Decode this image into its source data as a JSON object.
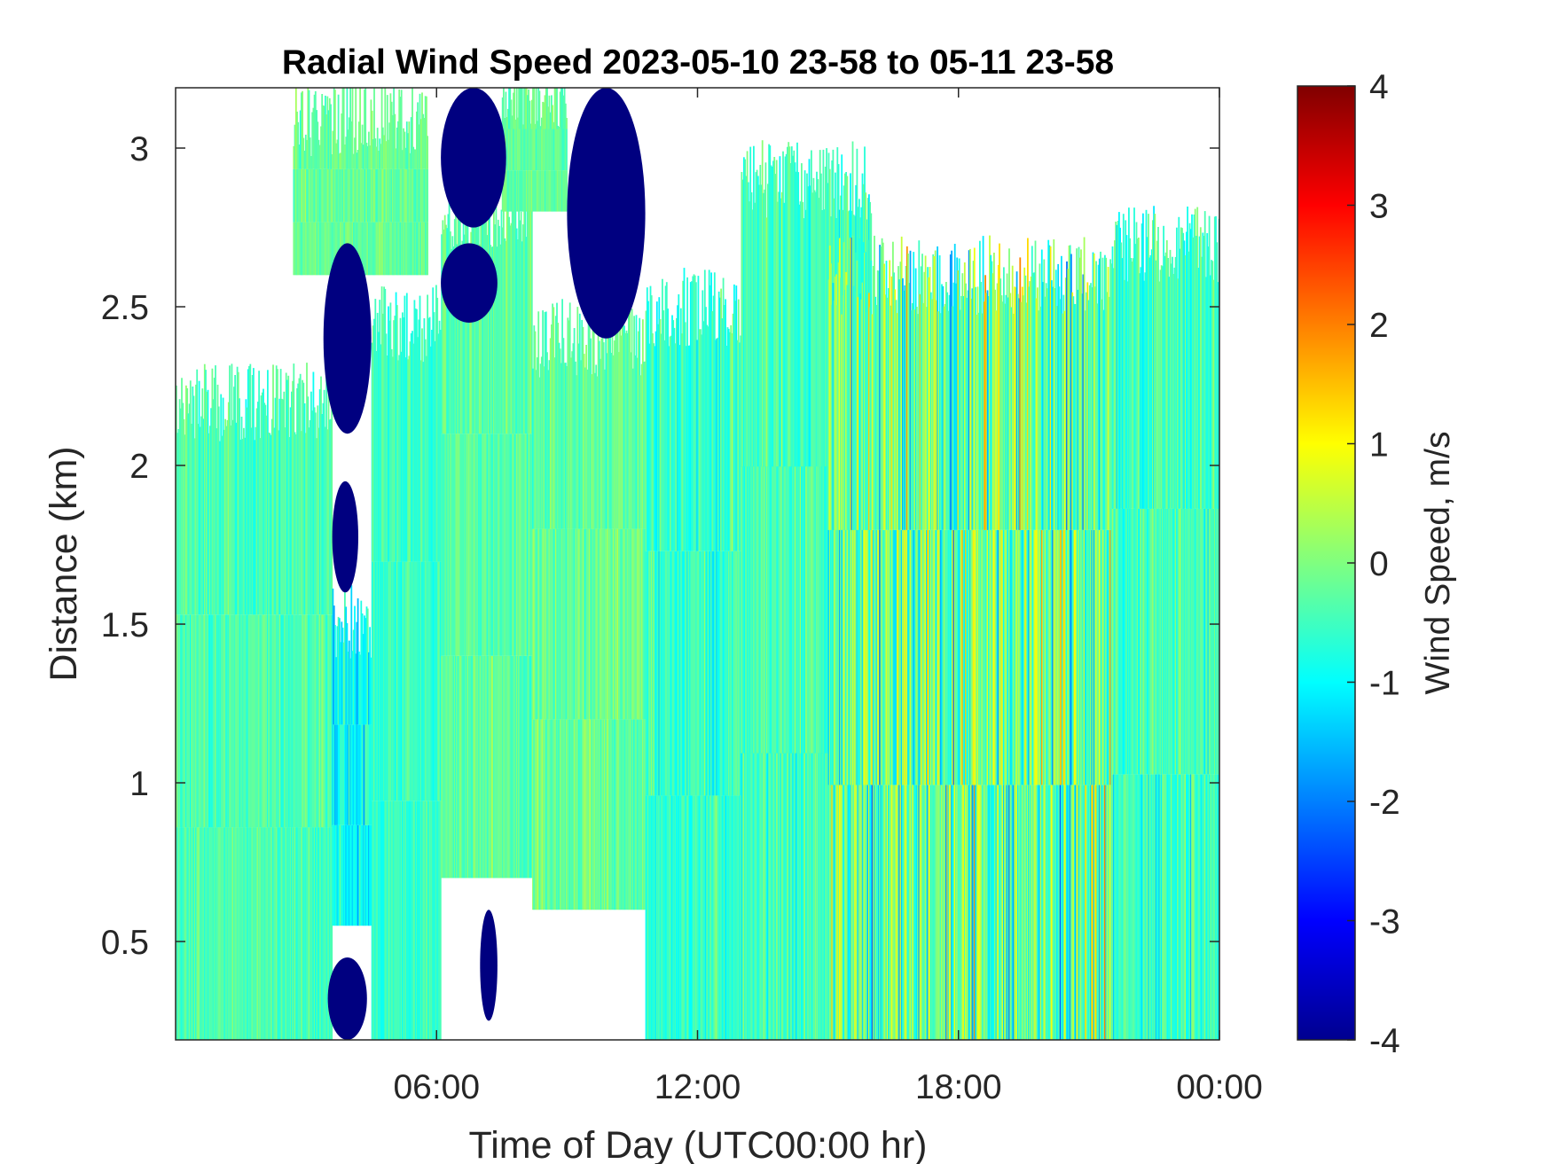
{
  "chart_data": {
    "type": "heatmap",
    "title": "Radial Wind Speed 2023-05-10 23-58 to 05-11 23-58",
    "xlabel": "Time of Day (UTC00:00 hr)",
    "ylabel": "Distance (km)",
    "x_ticks": [
      {
        "value": 6,
        "label": "06:00"
      },
      {
        "value": 12,
        "label": "12:00"
      },
      {
        "value": 18,
        "label": "18:00"
      },
      {
        "value": 24,
        "label": "00:00"
      }
    ],
    "y_ticks": [
      {
        "value": 0.5,
        "label": "0.5"
      },
      {
        "value": 1,
        "label": "1"
      },
      {
        "value": 1.5,
        "label": "1.5"
      },
      {
        "value": 2,
        "label": "2"
      },
      {
        "value": 2.5,
        "label": "2.5"
      },
      {
        "value": 3,
        "label": "3"
      }
    ],
    "xlim": [
      0,
      24
    ],
    "ylim": [
      0.19,
      3.19
    ],
    "colorbar": {
      "label": "Wind Speed, m/s",
      "colormap": "jet",
      "range": [
        -4,
        4
      ],
      "ticks": [
        {
          "value": 4,
          "label": "4"
        },
        {
          "value": 3,
          "label": "3"
        },
        {
          "value": 2,
          "label": "2"
        },
        {
          "value": 1,
          "label": "1"
        },
        {
          "value": 0,
          "label": "0"
        },
        {
          "value": -1,
          "label": "-1"
        },
        {
          "value": -2,
          "label": "-2"
        },
        {
          "value": -3,
          "label": "-3"
        },
        {
          "value": -4,
          "label": "-4"
        }
      ]
    },
    "no_data_color": "#ffffff",
    "regions": [
      {
        "t0": 0,
        "t1": 3.6,
        "d0": 0.19,
        "d1": 2.2,
        "mean": -0.4,
        "spread": 0.35
      },
      {
        "t0": 3.6,
        "t1": 4.5,
        "d0": 0.55,
        "d1": 1.5,
        "mean": -1.0,
        "spread": 0.5
      },
      {
        "t0": 4.5,
        "t1": 6.1,
        "d0": 0.19,
        "d1": 2.45,
        "mean": -0.6,
        "spread": 0.35
      },
      {
        "t0": 6.1,
        "t1": 8.2,
        "d0": 0.7,
        "d1": 2.8,
        "mean": -0.3,
        "spread": 0.35
      },
      {
        "t0": 8.2,
        "t1": 10.8,
        "d0": 0.6,
        "d1": 2.4,
        "mean": -0.2,
        "spread": 0.4
      },
      {
        "t0": 10.8,
        "t1": 15.0,
        "d0": 0.19,
        "d1": 2.5,
        "mean": -0.6,
        "spread": 0.45
      },
      {
        "t0": 13.0,
        "t1": 16.0,
        "d0": 0.19,
        "d1": 2.9,
        "mean": -0.5,
        "spread": 0.45
      },
      {
        "t0": 15.0,
        "t1": 21.5,
        "d0": 0.19,
        "d1": 2.6,
        "mean": -0.2,
        "spread": 1.2
      },
      {
        "t0": 21.5,
        "t1": 24.0,
        "d0": 0.19,
        "d1": 2.7,
        "mean": -0.5,
        "spread": 0.5
      },
      {
        "t0": 2.7,
        "t1": 5.8,
        "d0": 2.6,
        "d1": 3.1,
        "mean": -0.2,
        "spread": 0.3
      },
      {
        "t0": 7.5,
        "t1": 9.0,
        "d0": 2.8,
        "d1": 3.19,
        "mean": -0.2,
        "spread": 0.3
      }
    ],
    "strong_negative_blobs": [
      {
        "t0": 3.4,
        "t1": 4.5,
        "d0": 2.1,
        "d1": 2.7,
        "value": -4
      },
      {
        "t0": 3.6,
        "t1": 4.2,
        "d0": 1.6,
        "d1": 1.95,
        "value": -4
      },
      {
        "t0": 6.1,
        "t1": 7.6,
        "d0": 2.75,
        "d1": 3.19,
        "value": -4
      },
      {
        "t0": 6.1,
        "t1": 7.4,
        "d0": 2.45,
        "d1": 2.7,
        "value": -4
      },
      {
        "t0": 9.0,
        "t1": 10.8,
        "d0": 2.4,
        "d1": 3.19,
        "value": -4
      },
      {
        "t0": 7.0,
        "t1": 7.4,
        "d0": 0.25,
        "d1": 0.6,
        "value": -4
      },
      {
        "t0": 3.5,
        "t1": 4.4,
        "d0": 0.19,
        "d1": 0.45,
        "value": -4
      }
    ]
  }
}
